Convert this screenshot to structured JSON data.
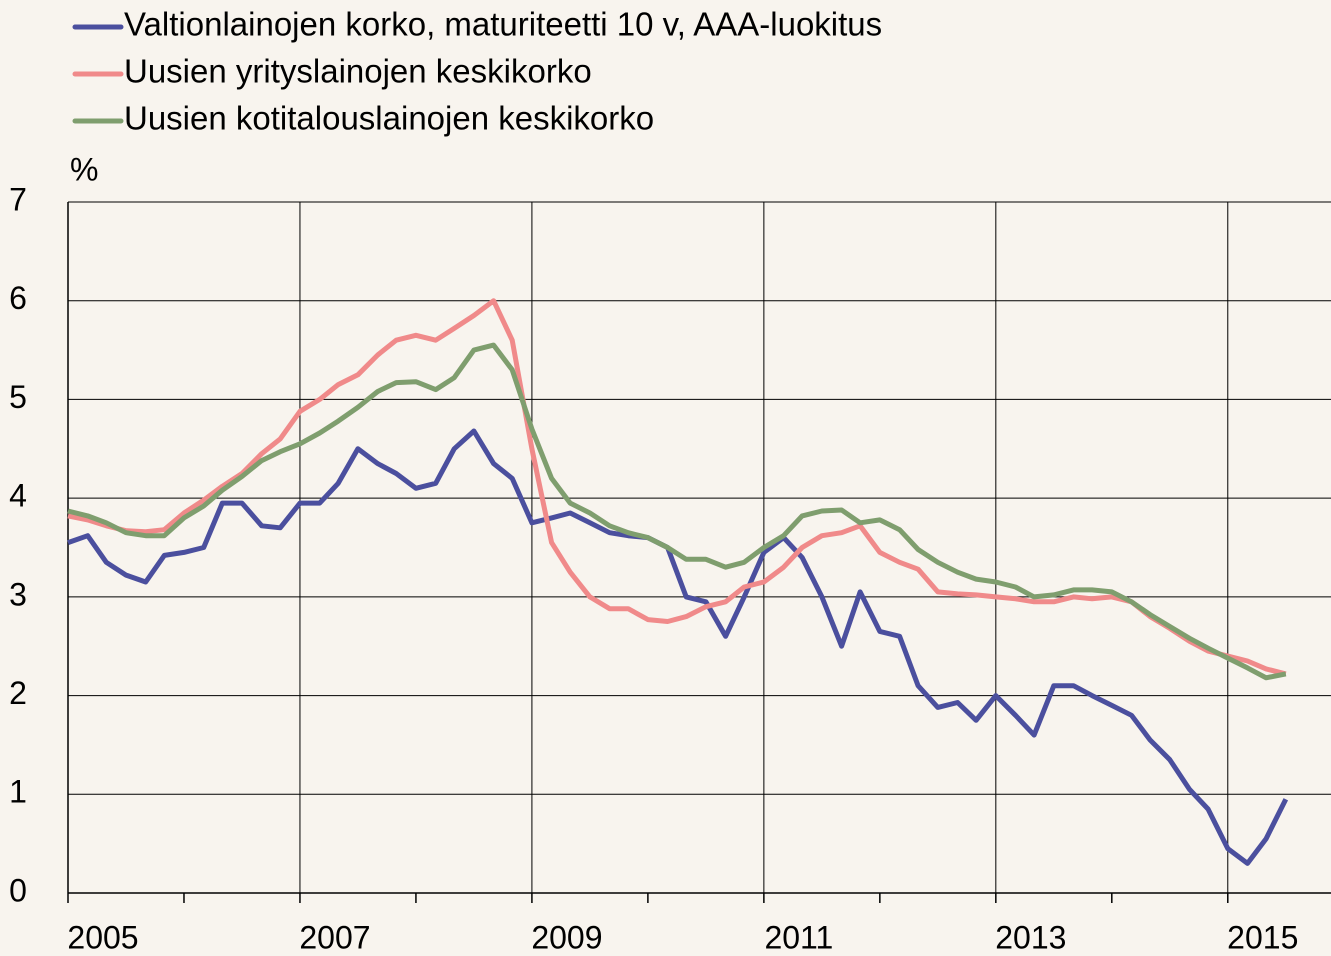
{
  "chart_data": {
    "type": "line",
    "y_label": "%",
    "x": [
      2005.0,
      2005.17,
      2005.33,
      2005.5,
      2005.67,
      2005.83,
      2006.0,
      2006.17,
      2006.33,
      2006.5,
      2006.67,
      2006.83,
      2007.0,
      2007.17,
      2007.33,
      2007.5,
      2007.67,
      2007.83,
      2008.0,
      2008.17,
      2008.33,
      2008.5,
      2008.67,
      2008.83,
      2009.0,
      2009.17,
      2009.33,
      2009.5,
      2009.67,
      2009.83,
      2010.0,
      2010.17,
      2010.33,
      2010.5,
      2010.67,
      2010.83,
      2011.0,
      2011.17,
      2011.33,
      2011.5,
      2011.67,
      2011.83,
      2012.0,
      2012.17,
      2012.33,
      2012.5,
      2012.67,
      2012.83,
      2013.0,
      2013.17,
      2013.33,
      2013.5,
      2013.67,
      2013.83,
      2014.0,
      2014.17,
      2014.33,
      2014.5,
      2014.67,
      2014.83,
      2015.0,
      2015.17,
      2015.33,
      2015.5
    ],
    "series": [
      {
        "name": "Valtionlainojen korko, maturiteetti 10 v, AAA-luokitus",
        "color": "#4b4f9e",
        "values": [
          3.55,
          3.62,
          3.35,
          3.22,
          3.15,
          3.42,
          3.45,
          3.5,
          3.95,
          3.95,
          3.72,
          3.7,
          3.95,
          3.95,
          4.15,
          4.5,
          4.35,
          4.25,
          4.1,
          4.15,
          4.5,
          4.68,
          4.35,
          4.2,
          3.75,
          3.8,
          3.85,
          3.75,
          3.65,
          3.62,
          3.6,
          3.5,
          3.0,
          2.95,
          2.6,
          3.0,
          3.45,
          3.6,
          3.4,
          3.0,
          2.5,
          3.05,
          2.65,
          2.6,
          2.1,
          1.88,
          1.93,
          1.75,
          2.0,
          1.8,
          1.6,
          2.1,
          2.1,
          2.0,
          1.9,
          1.8,
          1.55,
          1.35,
          1.05,
          0.85,
          0.45,
          0.3,
          0.55,
          0.95
        ]
      },
      {
        "name": "Uusien yrityslainojen keskikorko",
        "color": "#f08a8a",
        "values": [
          3.82,
          3.78,
          3.72,
          3.67,
          3.66,
          3.68,
          3.85,
          3.98,
          4.12,
          4.25,
          4.45,
          4.6,
          4.88,
          5.0,
          5.15,
          5.25,
          5.45,
          5.6,
          5.65,
          5.6,
          5.72,
          5.85,
          6.0,
          5.6,
          4.5,
          3.55,
          3.25,
          3.0,
          2.88,
          2.88,
          2.77,
          2.75,
          2.8,
          2.9,
          2.95,
          3.1,
          3.15,
          3.3,
          3.5,
          3.62,
          3.65,
          3.72,
          3.45,
          3.35,
          3.28,
          3.05,
          3.03,
          3.02,
          3.0,
          2.98,
          2.95,
          2.95,
          3.0,
          2.98,
          3.0,
          2.95,
          2.8,
          2.68,
          2.55,
          2.45,
          2.4,
          2.35,
          2.27,
          2.22
        ]
      },
      {
        "name": "Uusien kotitalouslainojen keskikorko",
        "color": "#7f9e6e",
        "values": [
          3.87,
          3.82,
          3.75,
          3.65,
          3.62,
          3.62,
          3.8,
          3.92,
          4.08,
          4.22,
          4.38,
          4.47,
          4.55,
          4.66,
          4.78,
          4.92,
          5.08,
          5.17,
          5.18,
          5.1,
          5.22,
          5.5,
          5.55,
          5.3,
          4.7,
          4.2,
          3.95,
          3.85,
          3.72,
          3.65,
          3.6,
          3.5,
          3.38,
          3.38,
          3.3,
          3.35,
          3.5,
          3.62,
          3.82,
          3.87,
          3.88,
          3.75,
          3.78,
          3.68,
          3.48,
          3.35,
          3.25,
          3.18,
          3.15,
          3.1,
          3.0,
          3.02,
          3.07,
          3.07,
          3.05,
          2.95,
          2.82,
          2.7,
          2.58,
          2.48,
          2.38,
          2.28,
          2.18,
          2.22
        ]
      }
    ],
    "xlim": [
      2005,
      2015.89
    ],
    "xticks": [
      2005,
      2007,
      2009,
      2011,
      2013,
      2015
    ],
    "xminorticks": [
      2006,
      2008,
      2010,
      2012,
      2014
    ],
    "ylim": [
      0,
      7
    ],
    "yticks": [
      0,
      1,
      2,
      3,
      4,
      5,
      6,
      7
    ],
    "grid": true,
    "legend": "top-left"
  }
}
